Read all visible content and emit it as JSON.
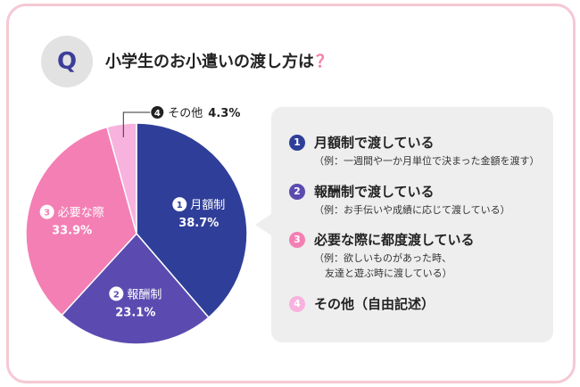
{
  "question": {
    "badge": "Q",
    "title": "小学生のお小遣いの渡し方は",
    "mark": "？"
  },
  "legend": [
    {
      "num": "1",
      "label": "月額制で渡している",
      "note": "（例：一週間や一か月単位で決まった金額を渡す）",
      "note2": ""
    },
    {
      "num": "2",
      "label": "報酬制で渡している",
      "note": "（例：お手伝いや成績に応じて渡している）",
      "note2": ""
    },
    {
      "num": "3",
      "label": "必要な際に都度渡している",
      "note": "（例：欲しいものがあった時、",
      "note2": "友達と遊ぶ時に渡している）"
    },
    {
      "num": "4",
      "label": "その他（自由記述）",
      "note": "",
      "note2": ""
    }
  ],
  "chart_data": {
    "type": "pie",
    "slices": [
      {
        "num": "1",
        "name": "月額制",
        "value": 38.7,
        "label": "38.7%",
        "color": "#2f3f99"
      },
      {
        "num": "2",
        "name": "報酬制",
        "value": 23.1,
        "label": "23.1%",
        "color": "#5b4bb0"
      },
      {
        "num": "3",
        "name": "必要な際",
        "value": 33.9,
        "label": "33.9%",
        "color": "#f47fb4"
      },
      {
        "num": "4",
        "name": "その他",
        "value": 4.3,
        "label": "4.3%",
        "color": "#f7b3de"
      }
    ],
    "start": "12 o'clock, clockwise"
  }
}
